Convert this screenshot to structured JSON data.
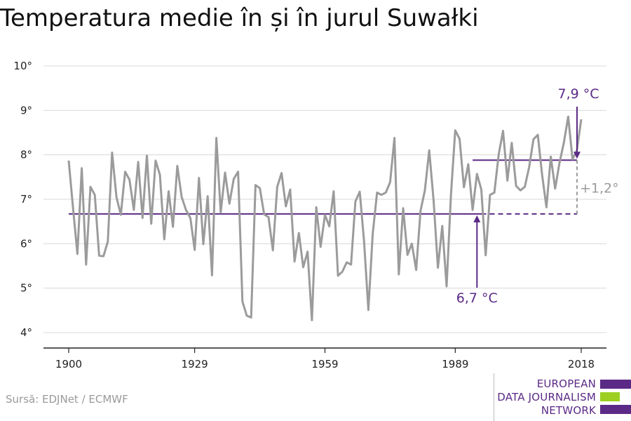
{
  "title": "Temperatura medie în și în jurul Suwałki",
  "source": "Sursă: EDJNet / ECMWF",
  "logo": {
    "lines": [
      "EUROPEAN",
      "DATA JOURNALISM",
      "NETWORK"
    ],
    "colors": [
      "#5b2a86",
      "#9bd021",
      "#5b2a86"
    ]
  },
  "colors": {
    "series": "#9b9b9b",
    "accent": "#5b2a86",
    "delta": "#9b9b9b",
    "grid": "#d8d8d8"
  },
  "chart_data": {
    "type": "line",
    "title": "Temperatura medie în și în jurul Suwałki",
    "xlabel": "",
    "ylabel": "",
    "xlim": [
      1900,
      2018
    ],
    "ylim": [
      4,
      10
    ],
    "x_ticks": [
      1900,
      1929,
      1959,
      1989,
      2018
    ],
    "y_ticks": [
      4,
      5,
      6,
      7,
      8,
      9,
      10
    ],
    "y_tick_labels": [
      "4°",
      "5°",
      "6°",
      "7°",
      "8°",
      "9°",
      "10°"
    ],
    "grid": true,
    "series": [
      {
        "x": [
          1900,
          1901,
          1902,
          1903,
          1904,
          1905,
          1906,
          1907,
          1908,
          1909,
          1910,
          1911,
          1912,
          1913,
          1914,
          1915,
          1916,
          1917,
          1918,
          1919,
          1920,
          1921,
          1922,
          1923,
          1924,
          1925,
          1926,
          1927,
          1928,
          1929,
          1930,
          1931,
          1932,
          1933,
          1934,
          1935,
          1936,
          1937,
          1938,
          1939,
          1940,
          1941,
          1942,
          1943,
          1944,
          1945,
          1946,
          1947,
          1948,
          1949,
          1950,
          1951,
          1952,
          1953,
          1954,
          1955,
          1956,
          1957,
          1958,
          1959,
          1960,
          1961,
          1962,
          1963,
          1964,
          1965,
          1966,
          1967,
          1968,
          1969,
          1970,
          1971,
          1972,
          1973,
          1974,
          1975,
          1976,
          1977,
          1978,
          1979,
          1980,
          1981,
          1982,
          1983,
          1984,
          1985,
          1986,
          1987,
          1988,
          1989,
          1990,
          1991,
          1992,
          1993,
          1994,
          1995,
          1996,
          1997,
          1998,
          1999,
          2000,
          2001,
          2002,
          2003,
          2004,
          2005,
          2006,
          2007,
          2008,
          2009,
          2010,
          2011,
          2012,
          2013,
          2014,
          2015,
          2016,
          2017,
          2018
        ],
        "values": [
          7.87,
          6.8,
          5.77,
          7.7,
          5.53,
          7.28,
          7.1,
          5.73,
          5.72,
          6.05,
          8.05,
          7.05,
          6.65,
          7.62,
          7.44,
          6.76,
          7.84,
          6.58,
          7.98,
          6.45,
          7.87,
          7.55,
          6.1,
          7.18,
          6.38,
          7.75,
          7.05,
          6.76,
          6.58,
          5.86,
          7.48,
          5.99,
          7.07,
          5.29,
          8.38,
          6.7,
          7.6,
          6.9,
          7.46,
          7.62,
          4.7,
          4.38,
          4.34,
          7.32,
          7.25,
          6.66,
          6.6,
          5.85,
          7.28,
          7.59,
          6.84,
          7.22,
          5.6,
          6.24,
          5.47,
          5.82,
          4.28,
          6.82,
          5.93,
          6.65,
          6.39,
          7.18,
          5.28,
          5.37,
          5.58,
          5.53,
          6.95,
          7.17,
          6.05,
          4.51,
          6.22,
          7.15,
          7.1,
          7.15,
          7.38,
          8.38,
          5.31,
          6.8,
          5.75,
          6.0,
          5.41,
          6.74,
          7.2,
          8.1,
          6.98,
          5.46,
          6.4,
          5.04,
          7.1,
          8.55,
          8.36,
          7.27,
          7.79,
          6.76,
          7.57,
          7.22,
          5.74,
          7.1,
          7.15,
          8.01,
          8.54,
          7.42,
          8.27,
          7.3,
          7.2,
          7.28,
          7.72,
          8.35,
          8.45,
          7.55,
          6.82,
          7.96,
          7.24,
          7.82,
          8.27,
          8.86,
          7.9,
          8.1,
          8.8
        ]
      }
    ],
    "reference_lines": [
      {
        "label": "6,7 °C",
        "value": 6.67,
        "x_start": 1900,
        "x_end": 2018
      },
      {
        "label": "7,9 °C",
        "value": 7.88,
        "x_start": 1990,
        "x_end": 2018
      }
    ],
    "delta_label": "+1,2°"
  }
}
